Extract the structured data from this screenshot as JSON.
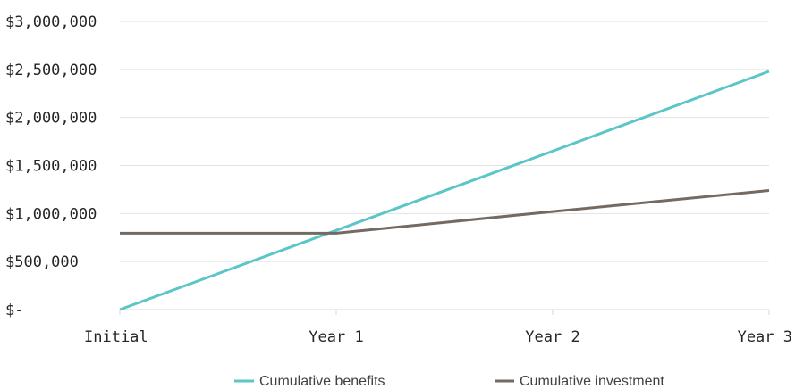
{
  "chart_data": {
    "type": "line",
    "title": "",
    "xlabel": "",
    "ylabel": "",
    "categories": [
      "Initial",
      "Year 1",
      "Year 2",
      "Year 3"
    ],
    "y_tick_labels": [
      "$-",
      "$500,000",
      "$1,000,000",
      "$1,500,000",
      "$2,000,000",
      "$2,500,000",
      "$3,000,000"
    ],
    "y_tick_values": [
      0,
      500000,
      1000000,
      1500000,
      2000000,
      2500000,
      3000000
    ],
    "ylim": [
      0,
      3000000
    ],
    "grid": true,
    "legend_position": "bottom",
    "series": [
      {
        "name": "Cumulative benefits",
        "color": "#5bc5c8",
        "values": [
          0,
          825000,
          1650000,
          2480000
        ]
      },
      {
        "name": "Cumulative investment",
        "color": "#736a64",
        "values": [
          795000,
          795000,
          1020000,
          1240000
        ]
      }
    ]
  }
}
